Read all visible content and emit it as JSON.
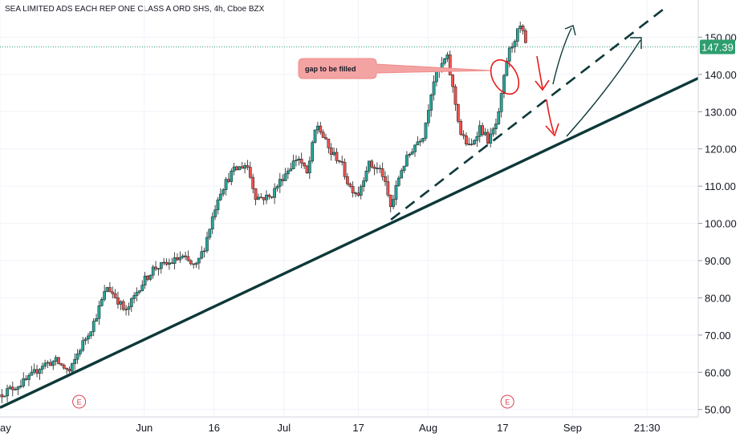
{
  "header": {
    "title": "SEA LIMITED ADS EACH REP ONE CLASS A ORD SHS, 4h, Cboe BZX"
  },
  "chart_data": {
    "type": "candlestick",
    "ylim": [
      48,
      160
    ],
    "y_ticks": [
      "50.00",
      "60.00",
      "70.00",
      "80.00",
      "90.00",
      "100.00",
      "110.00",
      "120.00",
      "130.00",
      "140.00",
      "150.00"
    ],
    "x_ticks": [
      {
        "label": "ay",
        "day": 0
      },
      {
        "label": "Jun",
        "day": 31
      },
      {
        "label": "16",
        "day": 46
      },
      {
        "label": "Jul",
        "day": 61
      },
      {
        "label": "17",
        "day": 77
      },
      {
        "label": "Aug",
        "day": 92
      },
      {
        "label": "17",
        "day": 108
      },
      {
        "label": "Sep",
        "day": 123
      },
      {
        "label": "21:30",
        "day": 139
      }
    ],
    "x_range_days": [
      0,
      150
    ],
    "last_price": "147.39",
    "last_price_value": 147.39,
    "earnings_markers": [
      {
        "label": "E",
        "day": 17
      },
      {
        "label": "E",
        "day": 109
      }
    ],
    "anchors": [
      {
        "day": 0,
        "price": 54
      },
      {
        "day": 3,
        "price": 56
      },
      {
        "day": 6,
        "price": 58
      },
      {
        "day": 9,
        "price": 62
      },
      {
        "day": 12,
        "price": 63
      },
      {
        "day": 15,
        "price": 60
      },
      {
        "day": 17,
        "price": 66
      },
      {
        "day": 20,
        "price": 73
      },
      {
        "day": 23,
        "price": 83
      },
      {
        "day": 25,
        "price": 80
      },
      {
        "day": 27,
        "price": 76
      },
      {
        "day": 30,
        "price": 83
      },
      {
        "day": 33,
        "price": 88
      },
      {
        "day": 36,
        "price": 89
      },
      {
        "day": 39,
        "price": 91
      },
      {
        "day": 42,
        "price": 88
      },
      {
        "day": 44,
        "price": 94
      },
      {
        "day": 47,
        "price": 108
      },
      {
        "day": 50,
        "price": 114
      },
      {
        "day": 53,
        "price": 116
      },
      {
        "day": 55,
        "price": 107
      },
      {
        "day": 58,
        "price": 107
      },
      {
        "day": 61,
        "price": 113
      },
      {
        "day": 64,
        "price": 118
      },
      {
        "day": 66,
        "price": 113
      },
      {
        "day": 68,
        "price": 127
      },
      {
        "day": 71,
        "price": 119
      },
      {
        "day": 73,
        "price": 117
      },
      {
        "day": 75,
        "price": 110
      },
      {
        "day": 77,
        "price": 108
      },
      {
        "day": 79,
        "price": 116
      },
      {
        "day": 82,
        "price": 114
      },
      {
        "day": 84,
        "price": 104
      },
      {
        "day": 86,
        "price": 114
      },
      {
        "day": 89,
        "price": 121
      },
      {
        "day": 91,
        "price": 124
      },
      {
        "day": 93,
        "price": 138
      },
      {
        "day": 96,
        "price": 145
      },
      {
        "day": 97,
        "price": 138
      },
      {
        "day": 99,
        "price": 124
      },
      {
        "day": 101,
        "price": 120
      },
      {
        "day": 103,
        "price": 126
      },
      {
        "day": 105,
        "price": 122
      },
      {
        "day": 107,
        "price": 128
      },
      {
        "day": 109,
        "price": 145
      },
      {
        "day": 111,
        "price": 151
      },
      {
        "day": 112,
        "price": 153
      },
      {
        "day": 113,
        "price": 147
      }
    ],
    "trendlines": [
      {
        "style": "solid",
        "from": {
          "day": 0,
          "price": 50.5
        },
        "to": {
          "day": 150,
          "price": 139
        }
      },
      {
        "style": "dashed",
        "from": {
          "day": 84,
          "price": 101
        },
        "to": {
          "day": 143,
          "price": 158
        }
      }
    ],
    "annotations": [
      {
        "text": "gap to be filled"
      }
    ]
  },
  "colors": {
    "up": "#26a69a",
    "down": "#ef5350",
    "candle_outline": "#1a1a1a",
    "trendline": "#0d3838",
    "price_label_bg": "#2e9e6e",
    "annotation_bg": "#f4a3a3",
    "annotation_red": "#e81a1a",
    "axis_text": "#131722"
  }
}
